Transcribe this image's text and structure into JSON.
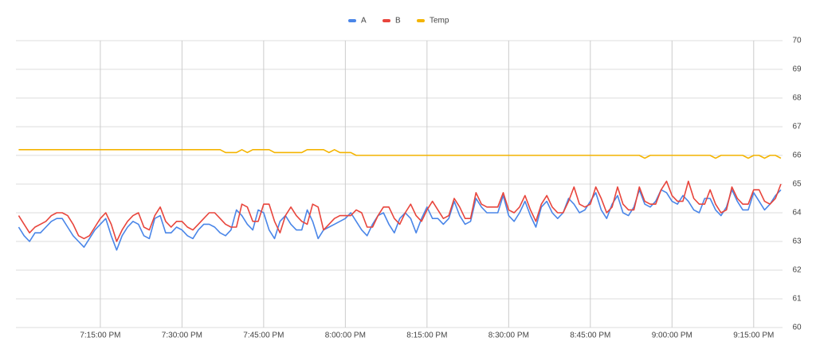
{
  "chart_data": {
    "type": "line",
    "x": [
      "7:00:00 PM",
      "7:01:00 PM",
      "7:02:00 PM",
      "7:03:00 PM",
      "7:04:00 PM",
      "7:05:00 PM",
      "7:06:00 PM",
      "7:07:00 PM",
      "7:08:00 PM",
      "7:09:00 PM",
      "7:10:00 PM",
      "7:11:00 PM",
      "7:12:00 PM",
      "7:13:00 PM",
      "7:14:00 PM",
      "7:15:00 PM",
      "7:16:00 PM",
      "7:17:00 PM",
      "7:18:00 PM",
      "7:19:00 PM",
      "7:20:00 PM",
      "7:21:00 PM",
      "7:22:00 PM",
      "7:23:00 PM",
      "7:24:00 PM",
      "7:25:00 PM",
      "7:26:00 PM",
      "7:27:00 PM",
      "7:28:00 PM",
      "7:29:00 PM",
      "7:30:00 PM",
      "7:31:00 PM",
      "7:32:00 PM",
      "7:33:00 PM",
      "7:34:00 PM",
      "7:35:00 PM",
      "7:36:00 PM",
      "7:37:00 PM",
      "7:38:00 PM",
      "7:39:00 PM",
      "7:40:00 PM",
      "7:41:00 PM",
      "7:42:00 PM",
      "7:43:00 PM",
      "7:44:00 PM",
      "7:45:00 PM",
      "7:46:00 PM",
      "7:47:00 PM",
      "7:48:00 PM",
      "7:49:00 PM",
      "7:50:00 PM",
      "7:51:00 PM",
      "7:52:00 PM",
      "7:53:00 PM",
      "7:54:00 PM",
      "7:55:00 PM",
      "7:56:00 PM",
      "7:57:00 PM",
      "7:58:00 PM",
      "7:59:00 PM",
      "8:00:00 PM",
      "8:01:00 PM",
      "8:02:00 PM",
      "8:03:00 PM",
      "8:04:00 PM",
      "8:05:00 PM",
      "8:06:00 PM",
      "8:07:00 PM",
      "8:08:00 PM",
      "8:09:00 PM",
      "8:10:00 PM",
      "8:11:00 PM",
      "8:12:00 PM",
      "8:13:00 PM",
      "8:14:00 PM",
      "8:15:00 PM",
      "8:16:00 PM",
      "8:17:00 PM",
      "8:18:00 PM",
      "8:19:00 PM",
      "8:20:00 PM",
      "8:21:00 PM",
      "8:22:00 PM",
      "8:23:00 PM",
      "8:24:00 PM",
      "8:25:00 PM",
      "8:26:00 PM",
      "8:27:00 PM",
      "8:28:00 PM",
      "8:29:00 PM",
      "8:30:00 PM",
      "8:31:00 PM",
      "8:32:00 PM",
      "8:33:00 PM",
      "8:34:00 PM",
      "8:35:00 PM",
      "8:36:00 PM",
      "8:37:00 PM",
      "8:38:00 PM",
      "8:39:00 PM",
      "8:40:00 PM",
      "8:41:00 PM",
      "8:42:00 PM",
      "8:43:00 PM",
      "8:44:00 PM",
      "8:45:00 PM",
      "8:46:00 PM",
      "8:47:00 PM",
      "8:48:00 PM",
      "8:49:00 PM",
      "8:50:00 PM",
      "8:51:00 PM",
      "8:52:00 PM",
      "8:53:00 PM",
      "8:54:00 PM",
      "8:55:00 PM",
      "8:56:00 PM",
      "8:57:00 PM",
      "8:58:00 PM",
      "8:59:00 PM",
      "9:00:00 PM",
      "9:01:00 PM",
      "9:02:00 PM",
      "9:03:00 PM",
      "9:04:00 PM",
      "9:05:00 PM",
      "9:06:00 PM",
      "9:07:00 PM",
      "9:08:00 PM",
      "9:09:00 PM",
      "9:10:00 PM",
      "9:11:00 PM",
      "9:12:00 PM",
      "9:13:00 PM",
      "9:14:00 PM",
      "9:15:00 PM",
      "9:16:00 PM",
      "9:17:00 PM",
      "9:18:00 PM",
      "9:19:00 PM",
      "9:20:00 PM"
    ],
    "series": [
      {
        "name": "A",
        "color": "#4a86e8",
        "values": [
          63.5,
          63.2,
          63.0,
          63.3,
          63.3,
          63.5,
          63.7,
          63.8,
          63.8,
          63.5,
          63.2,
          63.0,
          62.8,
          63.1,
          63.4,
          63.6,
          63.8,
          63.2,
          62.7,
          63.2,
          63.5,
          63.7,
          63.6,
          63.2,
          63.1,
          63.8,
          63.9,
          63.3,
          63.3,
          63.5,
          63.4,
          63.2,
          63.1,
          63.4,
          63.6,
          63.6,
          63.5,
          63.3,
          63.2,
          63.4,
          64.1,
          63.9,
          63.6,
          63.4,
          64.1,
          64.0,
          63.4,
          63.1,
          63.7,
          63.9,
          63.6,
          63.4,
          63.4,
          64.1,
          63.7,
          63.1,
          63.4,
          63.5,
          63.6,
          63.7,
          63.8,
          64.0,
          63.7,
          63.4,
          63.2,
          63.6,
          63.9,
          64.0,
          63.6,
          63.3,
          63.8,
          64.0,
          63.8,
          63.3,
          63.8,
          64.2,
          63.8,
          63.8,
          63.6,
          63.8,
          64.4,
          63.9,
          63.6,
          63.7,
          64.5,
          64.2,
          64.0,
          64.0,
          64.0,
          64.6,
          63.9,
          63.7,
          64.0,
          64.4,
          63.9,
          63.5,
          64.2,
          64.4,
          64.0,
          63.8,
          64.0,
          64.5,
          64.3,
          64.0,
          64.1,
          64.4,
          64.7,
          64.1,
          63.8,
          64.3,
          64.6,
          64.0,
          63.9,
          64.2,
          64.8,
          64.3,
          64.2,
          64.4,
          64.8,
          64.7,
          64.4,
          64.3,
          64.6,
          64.4,
          64.1,
          64.0,
          64.5,
          64.5,
          64.1,
          63.9,
          64.2,
          64.8,
          64.4,
          64.1,
          64.1,
          64.7,
          64.4,
          64.1,
          64.3,
          64.6,
          64.8
        ]
      },
      {
        "name": "B",
        "color": "#e8453c",
        "values": [
          63.9,
          63.6,
          63.3,
          63.5,
          63.6,
          63.7,
          63.9,
          64.0,
          64.0,
          63.9,
          63.6,
          63.2,
          63.1,
          63.2,
          63.5,
          63.8,
          64.0,
          63.6,
          63.0,
          63.4,
          63.7,
          63.9,
          64.0,
          63.5,
          63.4,
          63.9,
          64.2,
          63.7,
          63.5,
          63.7,
          63.7,
          63.5,
          63.4,
          63.6,
          63.8,
          64.0,
          64.0,
          63.8,
          63.6,
          63.5,
          63.5,
          64.3,
          64.2,
          63.7,
          63.7,
          64.3,
          64.3,
          63.7,
          63.3,
          63.9,
          64.2,
          63.9,
          63.7,
          63.6,
          64.3,
          64.2,
          63.4,
          63.6,
          63.8,
          63.9,
          63.9,
          63.9,
          64.1,
          64.0,
          63.5,
          63.5,
          63.9,
          64.2,
          64.2,
          63.8,
          63.6,
          64.0,
          64.3,
          63.9,
          63.7,
          64.1,
          64.4,
          64.1,
          63.8,
          63.9,
          64.5,
          64.2,
          63.8,
          63.8,
          64.7,
          64.3,
          64.2,
          64.2,
          64.2,
          64.7,
          64.1,
          64.0,
          64.2,
          64.6,
          64.1,
          63.7,
          64.3,
          64.6,
          64.2,
          64.0,
          64.0,
          64.4,
          64.9,
          64.3,
          64.2,
          64.3,
          64.9,
          64.5,
          64.0,
          64.2,
          64.9,
          64.3,
          64.1,
          64.1,
          64.9,
          64.4,
          64.3,
          64.3,
          64.8,
          65.1,
          64.6,
          64.4,
          64.4,
          65.1,
          64.5,
          64.3,
          64.3,
          64.8,
          64.3,
          64.0,
          64.1,
          64.9,
          64.5,
          64.3,
          64.3,
          64.8,
          64.8,
          64.4,
          64.3,
          64.5,
          65.0
        ]
      },
      {
        "name": "Temp",
        "color": "#f4b400",
        "values": [
          66.2,
          66.2,
          66.2,
          66.2,
          66.2,
          66.2,
          66.2,
          66.2,
          66.2,
          66.2,
          66.2,
          66.2,
          66.2,
          66.2,
          66.2,
          66.2,
          66.2,
          66.2,
          66.2,
          66.2,
          66.2,
          66.2,
          66.2,
          66.2,
          66.2,
          66.2,
          66.2,
          66.2,
          66.2,
          66.2,
          66.2,
          66.2,
          66.2,
          66.2,
          66.2,
          66.2,
          66.2,
          66.2,
          66.1,
          66.1,
          66.1,
          66.2,
          66.1,
          66.2,
          66.2,
          66.2,
          66.2,
          66.1,
          66.1,
          66.1,
          66.1,
          66.1,
          66.1,
          66.2,
          66.2,
          66.2,
          66.2,
          66.1,
          66.2,
          66.1,
          66.1,
          66.1,
          66.0,
          66.0,
          66.0,
          66.0,
          66.0,
          66.0,
          66.0,
          66.0,
          66.0,
          66.0,
          66.0,
          66.0,
          66.0,
          66.0,
          66.0,
          66.0,
          66.0,
          66.0,
          66.0,
          66.0,
          66.0,
          66.0,
          66.0,
          66.0,
          66.0,
          66.0,
          66.0,
          66.0,
          66.0,
          66.0,
          66.0,
          66.0,
          66.0,
          66.0,
          66.0,
          66.0,
          66.0,
          66.0,
          66.0,
          66.0,
          66.0,
          66.0,
          66.0,
          66.0,
          66.0,
          66.0,
          66.0,
          66.0,
          66.0,
          66.0,
          66.0,
          66.0,
          66.0,
          65.9,
          66.0,
          66.0,
          66.0,
          66.0,
          66.0,
          66.0,
          66.0,
          66.0,
          66.0,
          66.0,
          66.0,
          66.0,
          65.9,
          66.0,
          66.0,
          66.0,
          66.0,
          66.0,
          65.9,
          66.0,
          66.0,
          65.9,
          66.0,
          66.0,
          65.9
        ]
      }
    ],
    "xlim": [
      "6:59:30 PM",
      "9:20:18 PM"
    ],
    "xticks": [
      "7:15:00 PM",
      "7:30:00 PM",
      "7:45:00 PM",
      "8:00:00 PM",
      "8:15:00 PM",
      "8:30:00 PM",
      "8:45:00 PM",
      "9:00:00 PM",
      "9:15:00 PM"
    ],
    "ylim": [
      60,
      70
    ],
    "yticks": [
      60,
      61,
      62,
      63,
      64,
      65,
      66,
      67,
      68,
      69,
      70
    ],
    "grid": true,
    "legend": "top"
  }
}
